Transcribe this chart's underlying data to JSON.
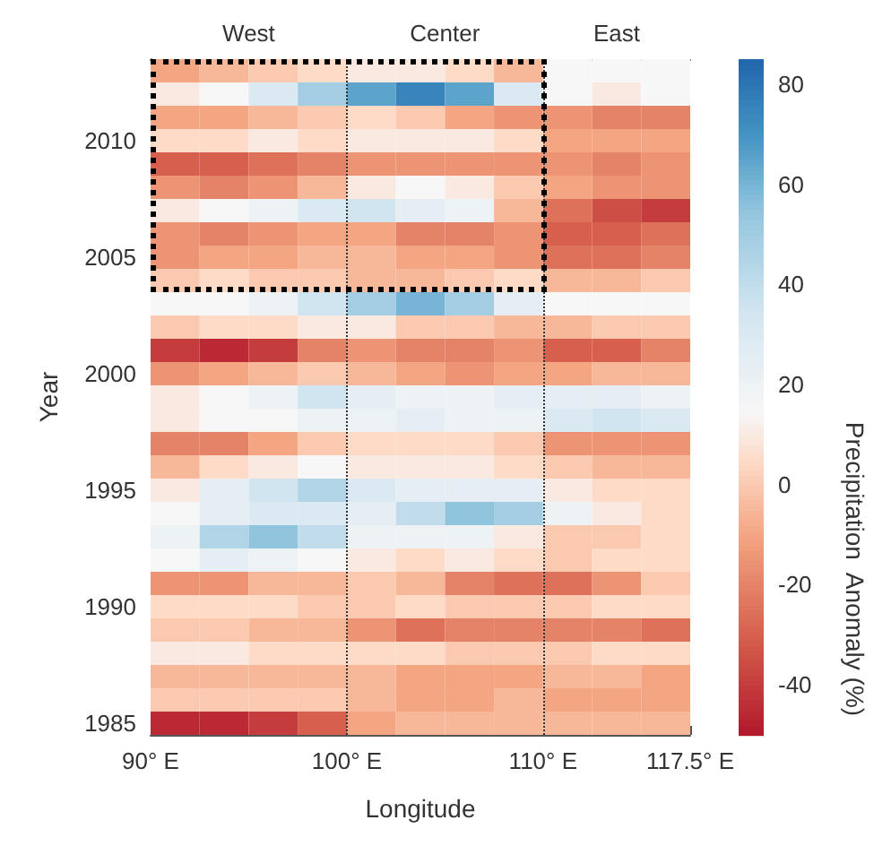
{
  "chart_data": {
    "type": "heatmap",
    "xlabel": "Longitude",
    "ylabel": "Year",
    "clabel": "Precipitation  Anomaly (%)",
    "annotations": [
      "West",
      "Center",
      "East"
    ],
    "x": [
      91.25,
      93.75,
      96.25,
      98.75,
      101.25,
      103.75,
      106.25,
      108.75,
      111.25,
      113.75,
      116.25
    ],
    "xlim": [
      90,
      117.5
    ],
    "xticks": [
      {
        "value": 90,
        "label": "90° E"
      },
      {
        "value": 100,
        "label": "100° E"
      },
      {
        "value": 110,
        "label": "110° E"
      },
      {
        "value": 117.5,
        "label": "117.5° E"
      }
    ],
    "y_categories": [
      null,
      null,
      null,
      "2010",
      null,
      null,
      null,
      null,
      "2005",
      null,
      null,
      null,
      null,
      "2000",
      null,
      null,
      null,
      null,
      "1995",
      null,
      null,
      null,
      null,
      "1990",
      null,
      null,
      null,
      null,
      "1985"
    ],
    "cells": [
      [
        -10,
        -5,
        0,
        5,
        10,
        10,
        5,
        -5,
        15,
        15,
        15
      ],
      [
        10,
        15,
        30,
        50,
        65,
        75,
        65,
        30,
        15,
        10,
        15
      ],
      [
        -10,
        -10,
        -5,
        0,
        5,
        0,
        -10,
        -15,
        -15,
        -20,
        -20
      ],
      [
        5,
        5,
        10,
        5,
        10,
        10,
        10,
        5,
        -10,
        -10,
        -10
      ],
      [
        -30,
        -30,
        -25,
        -20,
        -15,
        -15,
        -15,
        -15,
        -15,
        -20,
        -15
      ],
      [
        -15,
        -20,
        -15,
        -5,
        10,
        15,
        10,
        0,
        -10,
        -15,
        -15
      ],
      [
        10,
        15,
        20,
        30,
        35,
        25,
        20,
        -5,
        -25,
        -35,
        -40
      ],
      [
        -15,
        -20,
        -15,
        -10,
        -10,
        -20,
        -20,
        -15,
        -30,
        -30,
        -25
      ],
      [
        -15,
        -10,
        -10,
        -5,
        -5,
        -10,
        -10,
        -15,
        -25,
        -25,
        -20
      ],
      [
        0,
        5,
        0,
        0,
        -5,
        -5,
        0,
        5,
        -5,
        -5,
        0
      ],
      [
        15,
        15,
        20,
        35,
        50,
        60,
        50,
        25,
        15,
        15,
        15
      ],
      [
        0,
        5,
        5,
        10,
        10,
        0,
        0,
        -5,
        -5,
        0,
        0
      ],
      [
        -40,
        -45,
        -40,
        -20,
        -15,
        -20,
        -20,
        -15,
        -30,
        -30,
        -20
      ],
      [
        -15,
        -10,
        -5,
        0,
        -5,
        -10,
        -15,
        -10,
        -10,
        -5,
        -5
      ],
      [
        10,
        15,
        20,
        35,
        25,
        20,
        20,
        25,
        25,
        25,
        20
      ],
      [
        10,
        15,
        15,
        20,
        20,
        25,
        20,
        20,
        30,
        35,
        30
      ],
      [
        -20,
        -20,
        -10,
        0,
        5,
        5,
        5,
        0,
        -15,
        -15,
        -15
      ],
      [
        -5,
        5,
        10,
        15,
        10,
        10,
        10,
        5,
        0,
        -5,
        -5
      ],
      [
        10,
        25,
        35,
        45,
        30,
        25,
        25,
        25,
        10,
        5,
        5
      ],
      [
        15,
        25,
        30,
        30,
        25,
        40,
        55,
        50,
        20,
        10,
        5
      ],
      [
        20,
        45,
        55,
        40,
        20,
        20,
        20,
        10,
        0,
        0,
        5
      ],
      [
        15,
        25,
        20,
        15,
        10,
        5,
        10,
        5,
        0,
        5,
        5
      ],
      [
        -15,
        -15,
        -5,
        -5,
        0,
        -5,
        -20,
        -25,
        -25,
        -15,
        0
      ],
      [
        5,
        5,
        5,
        0,
        0,
        5,
        0,
        0,
        0,
        5,
        5
      ],
      [
        0,
        0,
        -5,
        -5,
        -15,
        -25,
        -20,
        -20,
        -20,
        -20,
        -25
      ],
      [
        10,
        10,
        5,
        5,
        5,
        5,
        0,
        0,
        0,
        5,
        5
      ],
      [
        -5,
        -5,
        -5,
        -5,
        -5,
        -10,
        -10,
        -10,
        -5,
        -5,
        -10
      ],
      [
        0,
        0,
        0,
        0,
        -5,
        -10,
        -10,
        -5,
        -10,
        -10,
        -10
      ],
      [
        -45,
        -45,
        -40,
        -30,
        -10,
        -5,
        -5,
        -5,
        -5,
        -5,
        -5
      ]
    ],
    "clim": [
      -50,
      85
    ],
    "cticks": [
      -40,
      -20,
      0,
      20,
      40,
      60,
      80
    ],
    "ref_lines": [
      {
        "axis": "x",
        "value": 100,
        "color": "#333333",
        "line_style": "dotted"
      },
      {
        "axis": "x",
        "value": 110,
        "color": "#333333",
        "line_style": "dotted"
      }
    ]
  }
}
